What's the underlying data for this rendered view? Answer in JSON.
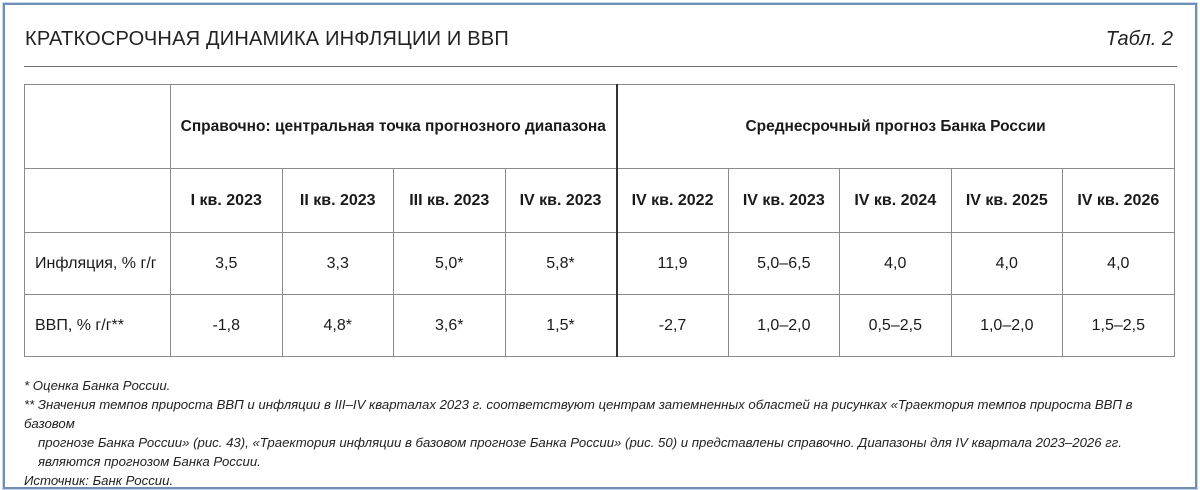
{
  "title": "КРАТКОСРОЧНАЯ ДИНАМИКА ИНФЛЯЦИИ И ВВП",
  "table_label": "Табл. 2",
  "groups": {
    "reference": "Справочно: центральная точка прогнозного диапазона",
    "forecast": "Среднесрочный прогноз Банка России"
  },
  "columns": [
    "I кв. 2023",
    "II кв. 2023",
    "III кв. 2023",
    "IV кв. 2023",
    "IV кв. 2022",
    "IV кв. 2023",
    "IV кв. 2024",
    "IV кв. 2025",
    "IV кв. 2026"
  ],
  "rows": [
    {
      "label": "Инфляция, % г/г",
      "values": [
        "3,5",
        "3,3",
        "5,0*",
        "5,8*",
        "11,9",
        "5,0–6,5",
        "4,0",
        "4,0",
        "4,0"
      ]
    },
    {
      "label": "ВВП, % г/г**",
      "values": [
        "-1,8",
        "4,8*",
        "3,6*",
        "1,5*",
        "-2,7",
        "1,0–2,0",
        "0,5–2,5",
        "1,0–2,0",
        "1,5–2,5"
      ]
    }
  ],
  "notes": {
    "estimate": "* Оценка Банка России.",
    "explanation_1": "** Значения темпов прироста ВВП и инфляции в III–IV кварталах 2023 г. соответствуют центрам затемненных областей на рисунках «Траектория темпов прироста ВВП в базовом",
    "explanation_2": "прогнозе Банка России» (рис. 43), «Траектория инфляции в базовом прогнозе Банка России» (рис. 50) и представлены справочно. Диапазоны для IV квартала 2023–2026 гг.",
    "explanation_3": "являются прогнозом Банка России.",
    "source": "Источник: Банк России."
  }
}
